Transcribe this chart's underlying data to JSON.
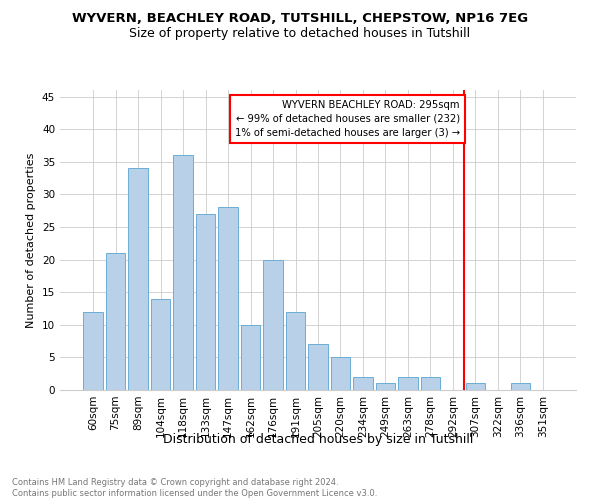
{
  "title": "WYVERN, BEACHLEY ROAD, TUTSHILL, CHEPSTOW, NP16 7EG",
  "subtitle": "Size of property relative to detached houses in Tutshill",
  "xlabel": "Distribution of detached houses by size in Tutshill",
  "ylabel": "Number of detached properties",
  "categories": [
    "60sqm",
    "75sqm",
    "89sqm",
    "104sqm",
    "118sqm",
    "133sqm",
    "147sqm",
    "162sqm",
    "176sqm",
    "191sqm",
    "205sqm",
    "220sqm",
    "234sqm",
    "249sqm",
    "263sqm",
    "278sqm",
    "292sqm",
    "307sqm",
    "322sqm",
    "336sqm",
    "351sqm"
  ],
  "values": [
    12,
    21,
    34,
    14,
    36,
    27,
    28,
    10,
    20,
    12,
    7,
    5,
    2,
    1,
    2,
    2,
    0,
    1,
    0,
    1,
    0
  ],
  "bar_color": "#b8d0e8",
  "bar_edgecolor": "#6baed6",
  "grid_color": "#cccccc",
  "vline_color": "red",
  "annotation_text": "WYVERN BEACHLEY ROAD: 295sqm\n← 99% of detached houses are smaller (232)\n1% of semi-detached houses are larger (3) →",
  "annotation_box_color": "white",
  "annotation_box_edgecolor": "red",
  "ylim": [
    0,
    46
  ],
  "yticks": [
    0,
    5,
    10,
    15,
    20,
    25,
    30,
    35,
    40,
    45
  ],
  "footer_text": "Contains HM Land Registry data © Crown copyright and database right 2024.\nContains public sector information licensed under the Open Government Licence v3.0.",
  "title_fontsize": 9.5,
  "subtitle_fontsize": 9,
  "tick_fontsize": 7.5,
  "ylabel_fontsize": 8,
  "xlabel_fontsize": 9
}
